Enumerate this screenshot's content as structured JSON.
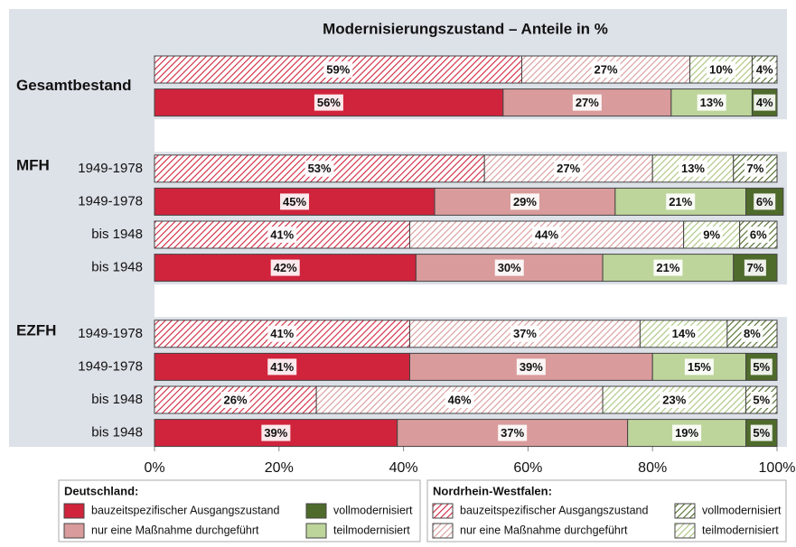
{
  "chart_data": {
    "type": "bar",
    "orientation": "horizontal",
    "stacked": true,
    "title": "Modernisierungszustand – Anteile in %",
    "groups": [
      {
        "name": "Gesamtbestand",
        "categories": [
          null,
          null
        ]
      },
      {
        "name": "MFH",
        "categories": [
          "1949-1978",
          "1949-1978",
          "bis 1948",
          "bis 1948"
        ]
      },
      {
        "name": "EZFH",
        "categories": [
          "1949-1978",
          "1949-1978",
          "bis 1948",
          "bis 1948"
        ]
      }
    ],
    "xlim": [
      0,
      100
    ],
    "xticks": [
      {
        "value": 0,
        "label": "0%"
      },
      {
        "value": 20,
        "label": "20%"
      },
      {
        "value": 40,
        "label": "40%"
      },
      {
        "value": 60,
        "label": "60%"
      },
      {
        "value": 80,
        "label": "80%"
      },
      {
        "value": 100,
        "label": "100%"
      }
    ],
    "legends": [
      {
        "title": "Deutschland:"
      },
      {
        "title": "Nordrhein-Westfalen:"
      }
    ],
    "series": [
      {
        "name": "bauzeitspezifischer Ausgangszustand",
        "legend": 0,
        "hatch": false,
        "color": "#d0243c",
        "values": [
          null,
          56,
          null,
          45,
          null,
          42,
          null,
          41,
          null,
          39
        ],
        "value_labels": [
          null,
          "56%",
          null,
          "45%",
          null,
          "42%",
          null,
          "41%",
          null,
          "39%"
        ]
      },
      {
        "name": "nur eine Maßnahme durchgeführt",
        "legend": 0,
        "hatch": false,
        "color": "#d99b9b",
        "values": [
          null,
          27,
          null,
          29,
          null,
          30,
          null,
          39,
          null,
          37
        ],
        "value_labels": [
          null,
          "27%",
          null,
          "29%",
          null,
          "30%",
          null,
          "39%",
          null,
          "37%"
        ]
      },
      {
        "name": "teilmodernisiert",
        "legend": 0,
        "hatch": false,
        "color": "#bdd59b",
        "values": [
          null,
          13,
          null,
          21,
          null,
          21,
          null,
          15,
          null,
          19
        ],
        "value_labels": [
          null,
          "13%",
          null,
          "21%",
          null,
          "21%",
          null,
          "15%",
          null,
          "19%"
        ]
      },
      {
        "name": "vollmodernisiert",
        "legend": 0,
        "hatch": false,
        "color": "#4f6b2b",
        "values": [
          null,
          4,
          null,
          6,
          null,
          7,
          null,
          5,
          null,
          5
        ],
        "value_labels": [
          null,
          "4%",
          null,
          "6%",
          null,
          "7%",
          null,
          "5%",
          null,
          "5%"
        ]
      },
      {
        "name": "bauzeitspezifischer Ausgangszustand",
        "legend": 1,
        "hatch": true,
        "color": "#d0243c",
        "values": [
          59,
          null,
          53,
          null,
          41,
          null,
          41,
          null,
          26,
          null
        ],
        "value_labels": [
          "59%",
          null,
          "53%",
          null,
          "41%",
          null,
          "41%",
          null,
          "26%",
          null
        ]
      },
      {
        "name": "nur eine Maßnahme durchgeführt",
        "legend": 1,
        "hatch": true,
        "color": "#d99b9b",
        "values": [
          27,
          null,
          27,
          null,
          44,
          null,
          37,
          null,
          46,
          null
        ],
        "value_labels": [
          "27%",
          null,
          "27%",
          null,
          "44%",
          null,
          "37%",
          null,
          "46%",
          null
        ]
      },
      {
        "name": "teilmodernisiert",
        "legend": 1,
        "hatch": true,
        "color": "#a9c47f",
        "values": [
          10,
          null,
          13,
          null,
          9,
          null,
          14,
          null,
          23,
          null
        ],
        "value_labels": [
          "10%",
          null,
          "13%",
          null,
          "9%",
          null,
          "14%",
          null,
          "23%",
          null
        ]
      },
      {
        "name": "vollmodernisiert",
        "legend": 1,
        "hatch": true,
        "color": "#4f6b2b",
        "values": [
          4,
          null,
          7,
          null,
          6,
          null,
          8,
          null,
          5,
          null
        ],
        "value_labels": [
          "4%",
          null,
          "7%",
          null,
          "6%",
          null,
          "8%",
          null,
          "5%",
          null
        ]
      }
    ]
  }
}
